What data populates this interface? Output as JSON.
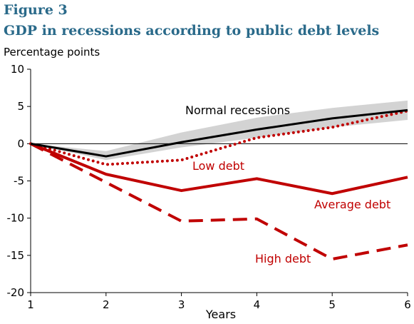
{
  "figure": {
    "label": "Figure 3",
    "title": "GDP in recessions according to public debt levels"
  },
  "chart_data": {
    "type": "line",
    "title": "GDP in recessions according to public debt levels",
    "ylabel": "Percentage points",
    "xlabel": "Years",
    "xlim": [
      1,
      6
    ],
    "ylim": [
      -20,
      10
    ],
    "x_ticks": [
      1,
      2,
      3,
      4,
      5,
      6
    ],
    "y_ticks": [
      10,
      5,
      0,
      -5,
      -10,
      -15,
      -20
    ],
    "grid": false,
    "legend": "inline labels",
    "band": {
      "series": "Normal recessions",
      "x": [
        1,
        2,
        3,
        4,
        5,
        6
      ],
      "upper": [
        0,
        -1.0,
        1.5,
        3.5,
        4.8,
        5.8
      ],
      "lower": [
        0,
        -2.2,
        -0.5,
        0.8,
        2.2,
        3.2
      ]
    },
    "series": [
      {
        "name": "Normal recessions",
        "x": [
          1,
          2,
          3,
          4,
          5,
          6
        ],
        "values": [
          0,
          -1.7,
          0.2,
          1.9,
          3.4,
          4.5
        ],
        "color": "#000000",
        "style": "solid"
      },
      {
        "name": "Low debt",
        "x": [
          1,
          2,
          3,
          4,
          5,
          6
        ],
        "values": [
          0,
          -2.8,
          -2.2,
          0.8,
          2.2,
          4.4
        ],
        "color": "#c00000",
        "style": "dotted"
      },
      {
        "name": "Average debt",
        "x": [
          1,
          2,
          3,
          4,
          5,
          6
        ],
        "values": [
          0,
          -4.1,
          -6.3,
          -4.7,
          -6.7,
          -4.5
        ],
        "color": "#c00000",
        "style": "solid"
      },
      {
        "name": "High debt",
        "x": [
          1,
          2,
          3,
          4,
          5,
          6
        ],
        "values": [
          0,
          -5.2,
          -10.4,
          -10.1,
          -15.5,
          -13.6
        ],
        "color": "#c00000",
        "style": "dashed"
      }
    ]
  }
}
